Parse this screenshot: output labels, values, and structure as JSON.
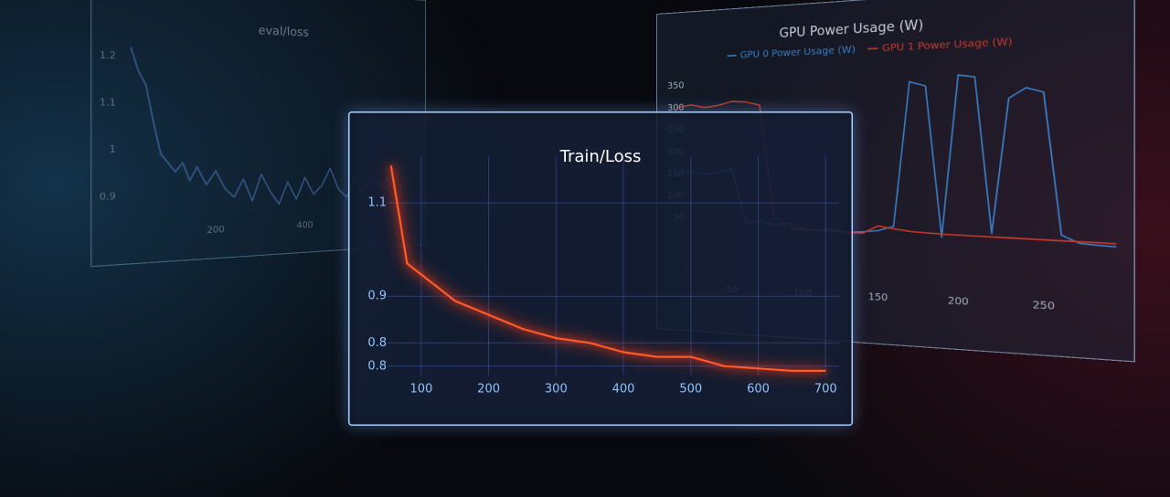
{
  "chart_data": [
    {
      "type": "line",
      "title": "eval/loss",
      "x": [
        25,
        40,
        55,
        70,
        85,
        100,
        115,
        130,
        145,
        160,
        180,
        200,
        220,
        240,
        260,
        280,
        300,
        320,
        340,
        360,
        380,
        400,
        420,
        440,
        460,
        480,
        500,
        520,
        540,
        560,
        580,
        600,
        620,
        640
      ],
      "values": [
        1.22,
        1.17,
        1.14,
        1.06,
        0.99,
        0.97,
        0.95,
        0.97,
        0.93,
        0.96,
        0.92,
        0.95,
        0.91,
        0.89,
        0.93,
        0.88,
        0.94,
        0.9,
        0.87,
        0.92,
        0.88,
        0.93,
        0.89,
        0.91,
        0.95,
        0.9,
        0.88,
        0.92,
        0.89,
        0.93,
        0.91,
        0.9,
        0.92,
        0.9
      ],
      "color": "#4a78b8",
      "xlim": [
        0,
        660
      ],
      "ylim": [
        0.84,
        1.25
      ],
      "xticks": [
        200,
        400
      ],
      "yticks": [
        1.2,
        1.1,
        1,
        0.9
      ],
      "grid": false
    },
    {
      "type": "line",
      "title": "GPU Power Usage (W)",
      "x": [
        10,
        20,
        30,
        40,
        50,
        60,
        70,
        80,
        90,
        100,
        110,
        120,
        130,
        140,
        150,
        160,
        170,
        180,
        190,
        200,
        210,
        220,
        230,
        240,
        250,
        260,
        270,
        280,
        290
      ],
      "series": [
        {
          "name": "GPU 0 Power Usage (W)",
          "color": "#3d8fe0",
          "values": [
            150,
            155,
            148,
            152,
            160,
            40,
            45,
            38,
            42,
            30,
            28,
            30,
            25,
            27,
            30,
            40,
            340,
            330,
            20,
            350,
            345,
            30,
            300,
            320,
            310,
            30,
            15,
            12,
            10
          ]
        },
        {
          "name": "GPU 1 Power Usage (W)",
          "color": "#e0402e",
          "values": [
            300,
            305,
            298,
            302,
            310,
            308,
            300,
            60,
            30,
            28,
            27,
            26,
            25,
            24,
            40,
            35,
            30,
            28,
            26,
            25,
            24,
            23,
            22,
            21,
            20,
            19,
            18,
            17,
            16
          ]
        }
      ],
      "xlim": [
        0,
        290
      ],
      "ylim": [
        0,
        370
      ],
      "xticks": [
        50,
        100,
        150,
        200,
        250
      ],
      "yticks": [
        50,
        100,
        150,
        200,
        250,
        300,
        350
      ],
      "grid": false
    },
    {
      "type": "line",
      "title": "Train/Loss",
      "x": [
        55,
        79,
        150,
        200,
        250,
        300,
        350,
        400,
        450,
        500,
        550,
        600,
        650,
        700
      ],
      "values": [
        1.18,
        0.97,
        0.89,
        0.86,
        0.83,
        0.81,
        0.8,
        0.78,
        0.77,
        0.77,
        0.75,
        0.745,
        0.74,
        0.74
      ],
      "color": "#ff5a2a",
      "xlim": [
        50,
        720
      ],
      "ylim": [
        0.73,
        1.2
      ],
      "xticks": [
        100,
        200,
        300,
        400,
        500,
        600,
        700
      ],
      "yticks": [
        1.1,
        0.9,
        0.8,
        {
          "value": 0.75,
          "label": "0.8"
        }
      ],
      "grid": true
    }
  ]
}
